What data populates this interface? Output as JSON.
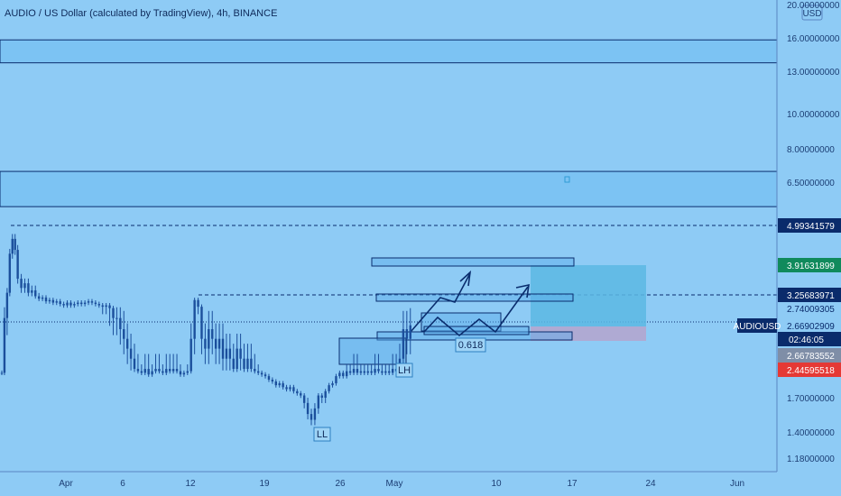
{
  "header": {
    "title": "AUDIO / US Dollar (calculated by TradingView), 4h, BINANCE"
  },
  "colors": {
    "background": "#8ecbf5",
    "candle": "#1b4f9c",
    "line": "#0a2d6e",
    "zone_fill": "#5aaeec",
    "target_fill": "#5cb8e3",
    "stop_fill": "#b2a6cf",
    "badge_dark": "#0a2b6b",
    "badge_green": "#108a5c",
    "badge_red": "#e53935",
    "badge_gray": "#7f8ea7"
  },
  "chart_data": {
    "type": "candlestick",
    "symbol": "AUDIOUSD",
    "interval": "4h",
    "exchange": "BINANCE",
    "currency": "USD",
    "y_scale": "log",
    "x_ticks": [
      "Apr",
      "6",
      "12",
      "19",
      "26",
      "May",
      "10",
      "17",
      "24",
      "Jun"
    ],
    "y_ticks": [
      20.0,
      16.0,
      13.0,
      10.0,
      8.0,
      6.5,
      2.7,
      1.7,
      1.4,
      1.18
    ],
    "y_tick_labels": [
      "20.00000000",
      "16.00000000",
      "13.00000000",
      "10.00000000",
      "8.00000000",
      "6.50000000",
      "2.74009305",
      "1.70000000",
      "1.40000000",
      "1.18000000"
    ],
    "price_badges": [
      {
        "label": "4.99341579",
        "value": 4.99341579,
        "style": "dark"
      },
      {
        "label": "3.91631899",
        "value": 3.91631899,
        "style": "green"
      },
      {
        "label": "3.25683971",
        "value": 3.25683971,
        "style": "dark"
      },
      {
        "label": "2.74009305",
        "value": 2.74009305,
        "style": "dark"
      },
      {
        "label": "2.66902909",
        "value": 2.66902909,
        "style": "dark"
      },
      {
        "label": "2.66783552",
        "value": 2.66783552,
        "style": "gray"
      },
      {
        "label": "2.44595518",
        "value": 2.44595518,
        "style": "red"
      }
    ],
    "symbol_badge": "AUDIOUSD",
    "countdown": "02:46:05",
    "horizontal_zones": [
      {
        "from": 13.7,
        "to": 15.8
      },
      {
        "from": 5.6,
        "to": 6.95
      }
    ],
    "dashed_levels": [
      4.99341579,
      3.25683971
    ],
    "current_price": 2.66902909,
    "annotations": [
      {
        "text": "LL",
        "x": "Apr 23",
        "y": 1.42
      },
      {
        "text": "LH",
        "x": "May 2",
        "y": 2.33
      },
      {
        "text": "0.618",
        "x": "May 7",
        "y": 2.55
      }
    ],
    "position": {
      "type": "long",
      "entry": 2.66902909,
      "target": 3.91631899,
      "stop": 2.44595518
    },
    "series": [
      {
        "name": "AUDIOUSD",
        "points": [
          [
            0,
            2.35
          ],
          [
            3,
            2.7
          ],
          [
            6,
            3.3
          ],
          [
            9,
            4.2
          ],
          [
            12,
            4.6
          ],
          [
            15,
            4.3
          ],
          [
            18,
            3.6
          ],
          [
            22,
            3.4
          ],
          [
            26,
            3.5
          ],
          [
            30,
            3.3
          ],
          [
            34,
            3.35
          ],
          [
            38,
            3.2
          ],
          [
            42,
            3.1
          ],
          [
            46,
            3.15
          ],
          [
            50,
            3.0
          ],
          [
            54,
            3.05
          ],
          [
            58,
            2.95
          ],
          [
            62,
            3.0
          ],
          [
            66,
            2.9
          ],
          [
            70,
            2.85
          ],
          [
            74,
            2.95
          ],
          [
            78,
            2.85
          ],
          [
            82,
            2.9
          ],
          [
            86,
            2.95
          ],
          [
            90,
            2.9
          ],
          [
            94,
            2.95
          ],
          [
            98,
            3.0
          ],
          [
            102,
            2.95
          ],
          [
            106,
            2.9
          ],
          [
            110,
            2.85
          ],
          [
            114,
            2.8
          ],
          [
            118,
            2.85
          ],
          [
            122,
            2.75
          ],
          [
            126,
            2.7
          ],
          [
            130,
            2.7
          ],
          [
            134,
            2.65
          ],
          [
            138,
            2.6
          ],
          [
            142,
            2.55
          ],
          [
            146,
            2.5
          ],
          [
            150,
            2.45
          ],
          [
            154,
            2.4
          ],
          [
            158,
            2.35
          ],
          [
            162,
            2.45
          ],
          [
            166,
            2.3
          ],
          [
            170,
            2.4
          ],
          [
            174,
            2.45
          ],
          [
            178,
            2.4
          ],
          [
            182,
            2.35
          ],
          [
            186,
            2.45
          ],
          [
            190,
            2.4
          ],
          [
            194,
            2.45
          ],
          [
            198,
            2.4
          ],
          [
            202,
            2.3
          ],
          [
            206,
            2.35
          ],
          [
            210,
            2.4
          ],
          [
            214,
            2.6
          ],
          [
            218,
            3.05
          ],
          [
            222,
            2.8
          ],
          [
            226,
            2.6
          ],
          [
            230,
            2.55
          ],
          [
            234,
            2.65
          ],
          [
            238,
            2.6
          ],
          [
            242,
            2.55
          ],
          [
            246,
            2.6
          ],
          [
            250,
            2.5
          ],
          [
            254,
            2.55
          ],
          [
            258,
            2.5
          ],
          [
            262,
            2.45
          ],
          [
            266,
            2.55
          ],
          [
            270,
            2.5
          ],
          [
            274,
            2.45
          ],
          [
            278,
            2.5
          ],
          [
            282,
            2.45
          ],
          [
            286,
            2.4
          ],
          [
            290,
            2.35
          ],
          [
            294,
            2.3
          ],
          [
            298,
            2.25
          ],
          [
            302,
            2.15
          ],
          [
            306,
            2.1
          ],
          [
            310,
            2.0
          ],
          [
            314,
            2.05
          ],
          [
            318,
            1.95
          ],
          [
            322,
            1.9
          ],
          [
            326,
            1.95
          ],
          [
            330,
            1.85
          ],
          [
            334,
            1.8
          ],
          [
            338,
            1.75
          ],
          [
            342,
            1.65
          ],
          [
            346,
            1.55
          ],
          [
            350,
            1.5
          ],
          [
            354,
            1.6
          ],
          [
            358,
            1.75
          ],
          [
            362,
            1.7
          ],
          [
            366,
            1.85
          ],
          [
            370,
            2.0
          ],
          [
            374,
            2.05
          ],
          [
            378,
            2.25
          ],
          [
            382,
            2.35
          ],
          [
            386,
            2.25
          ],
          [
            390,
            2.4
          ],
          [
            394,
            2.35
          ],
          [
            398,
            2.45
          ],
          [
            402,
            2.35
          ],
          [
            406,
            2.4
          ],
          [
            410,
            2.35
          ],
          [
            414,
            2.4
          ],
          [
            418,
            2.35
          ],
          [
            422,
            2.45
          ],
          [
            426,
            2.4
          ],
          [
            430,
            2.35
          ],
          [
            434,
            2.4
          ],
          [
            438,
            2.35
          ],
          [
            442,
            2.45
          ],
          [
            446,
            2.4
          ],
          [
            450,
            2.5
          ],
          [
            454,
            2.65
          ],
          [
            458,
            2.6
          ],
          [
            462,
            2.67
          ]
        ]
      }
    ]
  }
}
